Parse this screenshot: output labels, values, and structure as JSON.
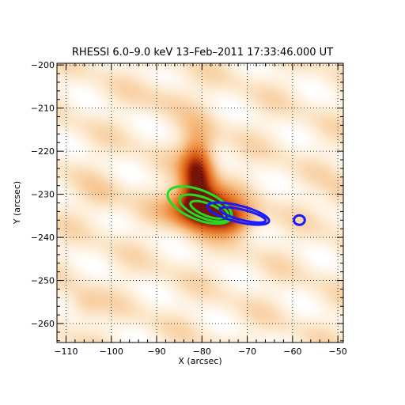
{
  "chart_data": {
    "type": "heatmap",
    "title": "RHESSI 6.0–9.0 keV 13–Feb–2011 17:33:46.000 UT",
    "xlabel": "X (arcsec)",
    "ylabel": "Y (arcsec)",
    "xlim": [
      -112.0,
      -48.8
    ],
    "ylim": [
      -264.4,
      -199.6
    ],
    "x_ticks": [
      -110,
      -100,
      -90,
      -80,
      -70,
      -60,
      -50
    ],
    "x_tick_labels": [
      "−110",
      "−100",
      "−90",
      "−80",
      "−70",
      "−60",
      "−50"
    ],
    "y_ticks": [
      -200,
      -210,
      -220,
      -230,
      -240,
      -250,
      -260
    ],
    "y_tick_labels": [
      "−200",
      "−210",
      "−220",
      "−230",
      "−240",
      "−250",
      "−260"
    ],
    "grid": true,
    "grid_style": "dotted",
    "colors": {
      "map": "#e8781a",
      "green_contours": "#22dd22",
      "blue_contours": "#1a1aff"
    },
    "image_sources": [
      {
        "x": -81,
        "y": -225,
        "sx": 2.6,
        "sy": 6.0,
        "amp": 0.85
      },
      {
        "x": -80,
        "y": -233,
        "sx": 5.0,
        "sy": 3.0,
        "amp": 0.95
      },
      {
        "x": -74,
        "y": -236,
        "sx": 4.0,
        "sy": 2.5,
        "amp": 0.6
      },
      {
        "x": -106,
        "y": -256,
        "sx": 2.5,
        "sy": 2.5,
        "amp": 0.18
      },
      {
        "x": -102,
        "y": -231,
        "sx": 3.0,
        "sy": 3.0,
        "amp": 0.12
      },
      {
        "x": -50,
        "y": -231,
        "sx": 2.0,
        "sy": 3.0,
        "amp": 0.14
      },
      {
        "x": -87,
        "y": -207,
        "sx": 4.0,
        "sy": 3.0,
        "amp": 0.1
      }
    ],
    "green_contours": [
      {
        "cx": -80.5,
        "cy": -232.5,
        "rx": 7.5,
        "ry": 3.4,
        "angle": -22
      },
      {
        "cx": -79.5,
        "cy": -233.2,
        "rx": 5.8,
        "ry": 2.3,
        "angle": -22
      },
      {
        "cx": -78.8,
        "cy": -233.6,
        "rx": 4.0,
        "ry": 1.4,
        "angle": -22
      }
    ],
    "blue_contours": [
      {
        "cx": -72.0,
        "cy": -234.5,
        "rx": 7.0,
        "ry": 1.9,
        "angle": -14
      },
      {
        "cx": -71.0,
        "cy": -234.8,
        "rx": 5.2,
        "ry": 1.2,
        "angle": -14
      },
      {
        "cx": -58.5,
        "cy": -236.0,
        "rx": 1.2,
        "ry": 1.1,
        "angle": 0
      }
    ]
  }
}
